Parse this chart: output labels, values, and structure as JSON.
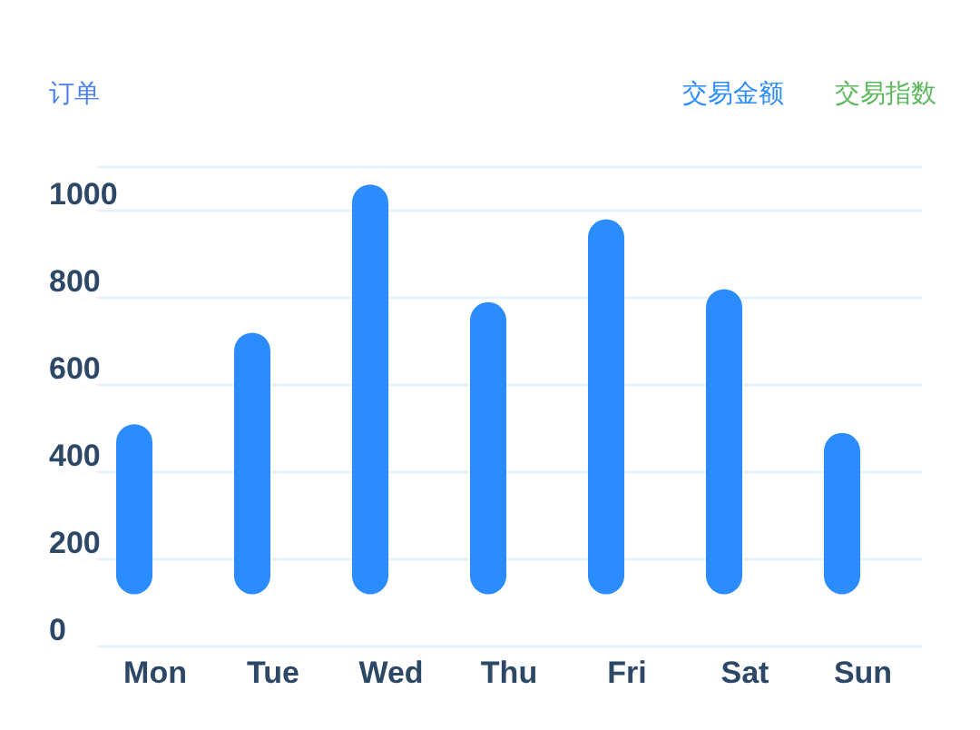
{
  "chart_data": {
    "type": "bar",
    "ylabel": "订单",
    "categories": [
      "Mon",
      "Tue",
      "Wed",
      "Thu",
      "Fri",
      "Sat",
      "Sun"
    ],
    "series": [
      {
        "name": "交易金额",
        "color": "#2b8cff",
        "values": [
          390,
          600,
          940,
          670,
          860,
          700,
          370
        ],
        "base": [
          120,
          120,
          120,
          120,
          120,
          120,
          120
        ]
      },
      {
        "name": "交易指数",
        "color": "#5cb85c",
        "values": [
          null,
          null,
          null,
          null,
          null,
          null,
          null
        ]
      }
    ],
    "ylim": [
      0,
      1100
    ],
    "yticks": [
      0,
      200,
      400,
      600,
      800,
      1000
    ],
    "grid": "y",
    "legend": "top right"
  }
}
